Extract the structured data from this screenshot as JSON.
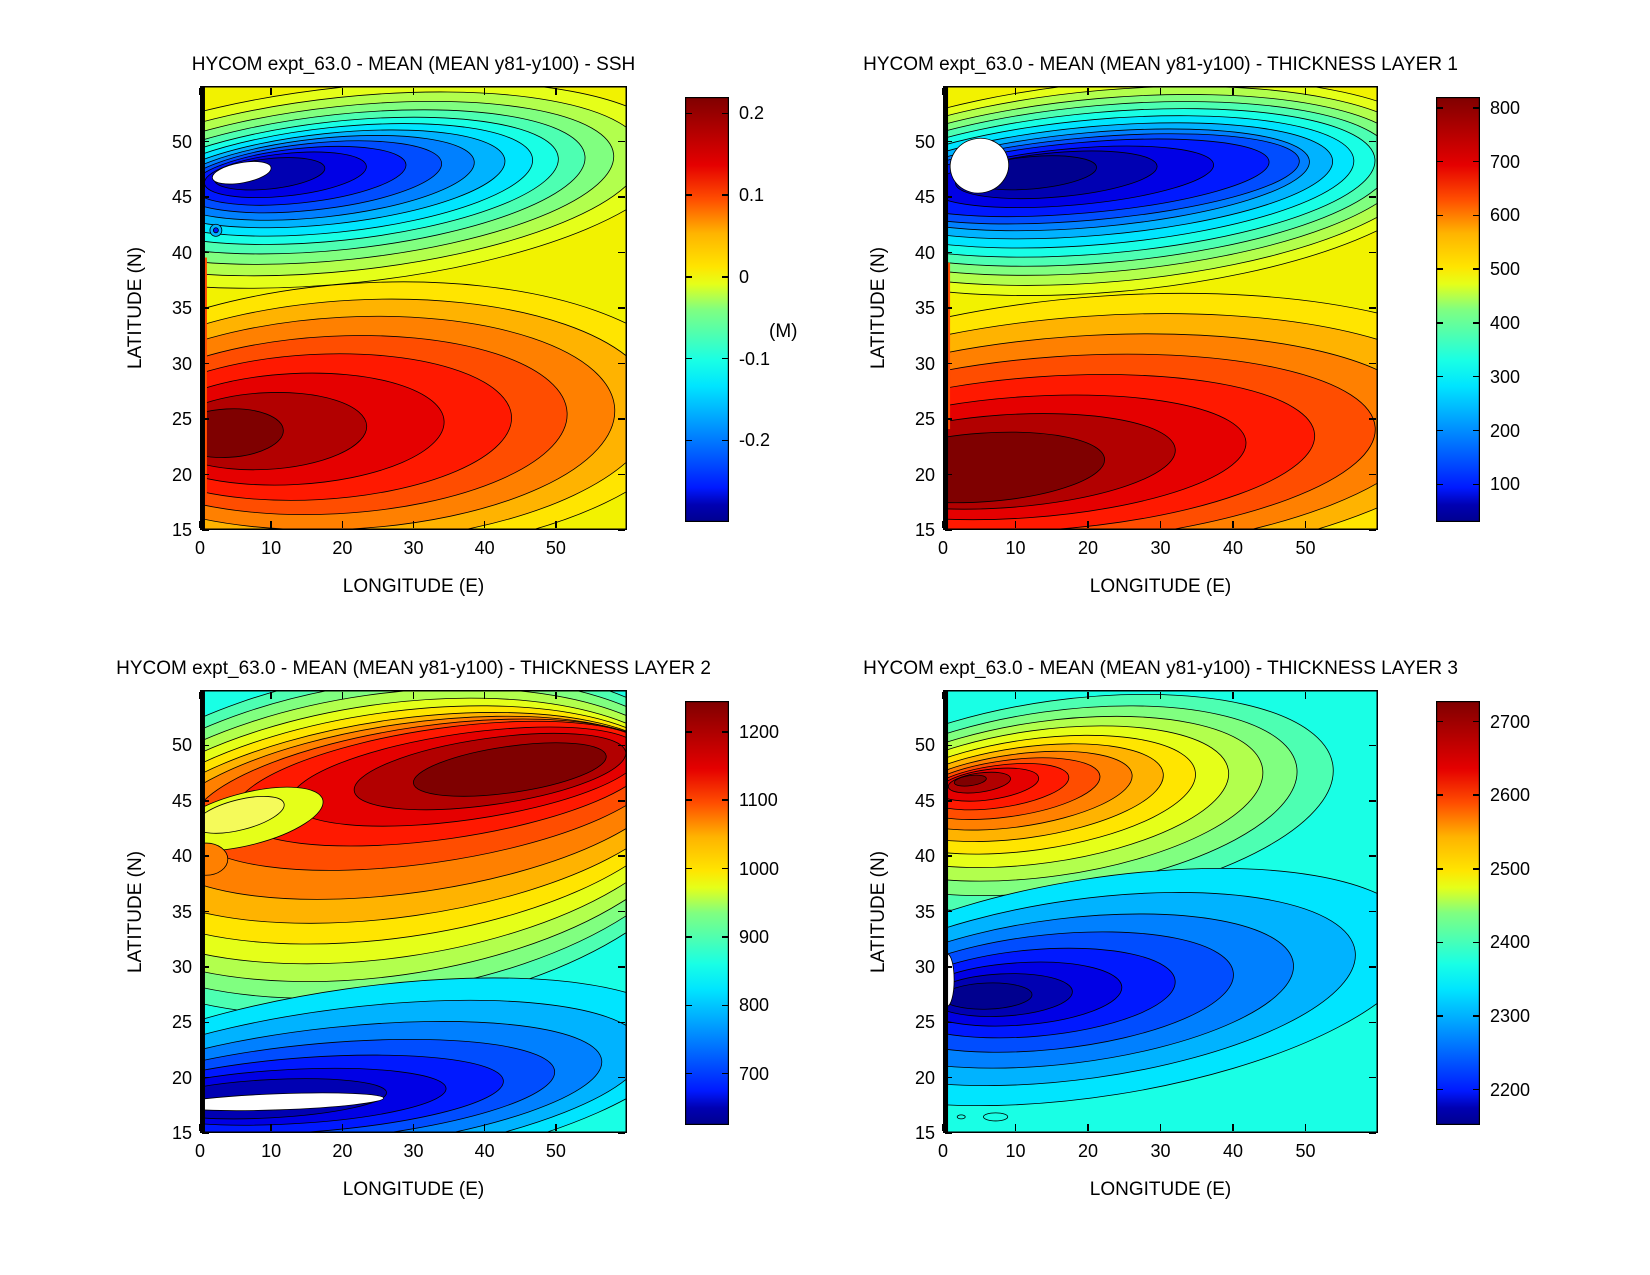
{
  "figure": {
    "background": "#ffffff",
    "description": "2x2 panel of HYCOM model mean-field filled contour maps (jet colormap) with vertical colorbars"
  },
  "chart_data": [
    {
      "type": "filled-contour",
      "title": "HYCOM expt_63.0 - MEAN (MEAN y81-y100) - SSH",
      "xlabel": "LONGITUDE (E)",
      "ylabel": "LATITUDE (N)",
      "xlim": [
        0,
        60
      ],
      "ylim": [
        15,
        55
      ],
      "xticks": [
        "0",
        "10",
        "20",
        "30",
        "40",
        "50"
      ],
      "yticks": [
        "50",
        "45",
        "40",
        "35",
        "30",
        "25",
        "20",
        "15"
      ],
      "colorbar": {
        "label": "(M)",
        "ticks": [
          "0.2",
          "0.1",
          "0",
          "-0.1",
          "-0.2"
        ],
        "tick_values": [
          0.2,
          0.1,
          0,
          -0.1,
          -0.2
        ],
        "range": [
          -0.3,
          0.22
        ]
      },
      "features": {
        "low": {
          "lon": 5,
          "lat": 47,
          "value": "below -0.25 (white region, off scale)"
        },
        "high": {
          "lon": 3,
          "lat": 24,
          "value": "about +0.22"
        },
        "pattern": "cyclonic subpolar low (blue) north of ~38N, anticyclonic subtropical high (red) to the south, near-zero (yellow) elsewhere"
      }
    },
    {
      "type": "filled-contour",
      "title": "HYCOM expt_63.0 - MEAN (MEAN y81-y100) - THICKNESS LAYER 1",
      "xlabel": "LONGITUDE (E)",
      "ylabel": "LATITUDE (N)",
      "xlim": [
        0,
        60
      ],
      "ylim": [
        15,
        55
      ],
      "xticks": [
        "0",
        "10",
        "20",
        "30",
        "40",
        "50"
      ],
      "yticks": [
        "50",
        "45",
        "40",
        "35",
        "30",
        "25",
        "20",
        "15"
      ],
      "colorbar": {
        "label": "",
        "ticks": [
          "800",
          "700",
          "600",
          "500",
          "400",
          "300",
          "200",
          "100"
        ],
        "tick_values": [
          800,
          700,
          600,
          500,
          400,
          300,
          200,
          100
        ],
        "range": [
          30,
          820
        ]
      },
      "features": {
        "low": {
          "lon": 4,
          "lat": 48,
          "value": "below 50 (white region, off scale)"
        },
        "high": {
          "lon": 5,
          "lat": 21,
          "value": "about 820"
        },
        "pattern": "thin layer (blue) in the subpolar northwest, thick layer (dark red) along the southwest boundary, ~500 (yellow) background"
      }
    },
    {
      "type": "filled-contour",
      "title": "HYCOM expt_63.0 - MEAN (MEAN y81-y100) - THICKNESS LAYER 2",
      "xlabel": "LONGITUDE (E)",
      "ylabel": "LATITUDE (N)",
      "xlim": [
        0,
        60
      ],
      "ylim": [
        15,
        55
      ],
      "xticks": [
        "0",
        "10",
        "20",
        "30",
        "40",
        "50"
      ],
      "yticks": [
        "50",
        "45",
        "40",
        "35",
        "30",
        "25",
        "20",
        "15"
      ],
      "colorbar": {
        "label": "",
        "ticks": [
          "1200",
          "1100",
          "1000",
          "900",
          "800",
          "700"
        ],
        "tick_values": [
          1200,
          1100,
          1000,
          900,
          800,
          700
        ],
        "range": [
          625,
          1245
        ]
      },
      "features": {
        "high": {
          "lon": 38,
          "lat": 48,
          "value": "about 1250 (dark red)"
        },
        "low": {
          "lon": 10,
          "lat": 19.5,
          "value": "below 650 (white sliver, off scale)"
        },
        "pattern": "thick layer (red/orange) in the north, thin layer (blue) in the south, ~800 (cyan) along the eastern edge"
      }
    },
    {
      "type": "filled-contour",
      "title": "HYCOM expt_63.0 - MEAN (MEAN y81-y100) - THICKNESS LAYER 3",
      "xlabel": "LONGITUDE (E)",
      "ylabel": "LATITUDE (N)",
      "xlim": [
        0,
        60
      ],
      "ylim": [
        15,
        55
      ],
      "xticks": [
        "0",
        "10",
        "20",
        "30",
        "40",
        "50"
      ],
      "yticks": [
        "50",
        "45",
        "40",
        "35",
        "30",
        "25",
        "20",
        "15"
      ],
      "colorbar": {
        "label": "",
        "ticks": [
          "2700",
          "2600",
          "2500",
          "2400",
          "2300",
          "2200"
        ],
        "tick_values": [
          2700,
          2600,
          2500,
          2400,
          2300,
          2200
        ],
        "range": [
          2152,
          2728
        ]
      },
      "features": {
        "high": {
          "lon": 3.5,
          "lat": 46.5,
          "value": "about 2720 (dark red core)"
        },
        "low": {
          "lon": 3,
          "lat": 30,
          "value": "about 2160 (dark blue core)"
        },
        "pattern": "uniform ~2350 (turquoise) background with a warm maximum lobe near 46N west and a cold minimum lobe near 30N west"
      }
    }
  ]
}
